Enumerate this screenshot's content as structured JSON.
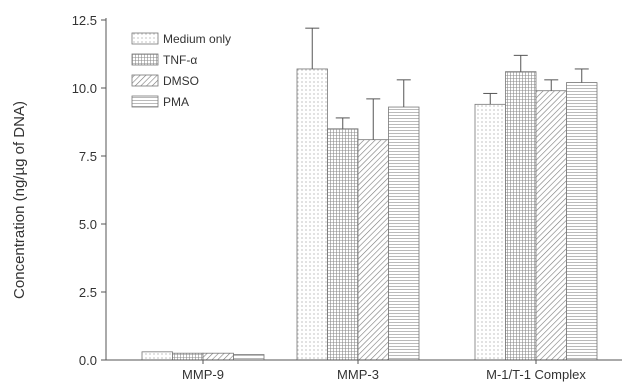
{
  "chart_data": {
    "type": "bar",
    "ylabel": "Concentration (ng/µg of DNA)",
    "ylim": [
      0,
      12.5
    ],
    "yticks": [
      "0.0",
      "2.5",
      "5.0",
      "7.5",
      "10.0",
      "12.5"
    ],
    "categories": [
      "MMP-9",
      "MMP-3",
      "M-1/T-1 Complex"
    ],
    "legend_position": "top-left",
    "series": [
      {
        "name": "Medium only",
        "pattern": "dots",
        "values": [
          0.3,
          10.7,
          9.4
        ],
        "errors": [
          0.0,
          1.5,
          0.4
        ]
      },
      {
        "name": "TNF-α",
        "pattern": "grid",
        "values": [
          0.25,
          8.5,
          10.6
        ],
        "errors": [
          0.0,
          0.4,
          0.6
        ]
      },
      {
        "name": "DMSO",
        "pattern": "diagonal",
        "values": [
          0.25,
          8.1,
          9.9
        ],
        "errors": [
          0.0,
          1.5,
          0.4
        ]
      },
      {
        "name": "PMA",
        "pattern": "horizontal",
        "values": [
          0.2,
          9.3,
          10.2
        ],
        "errors": [
          0.0,
          1.0,
          0.5
        ]
      }
    ]
  }
}
